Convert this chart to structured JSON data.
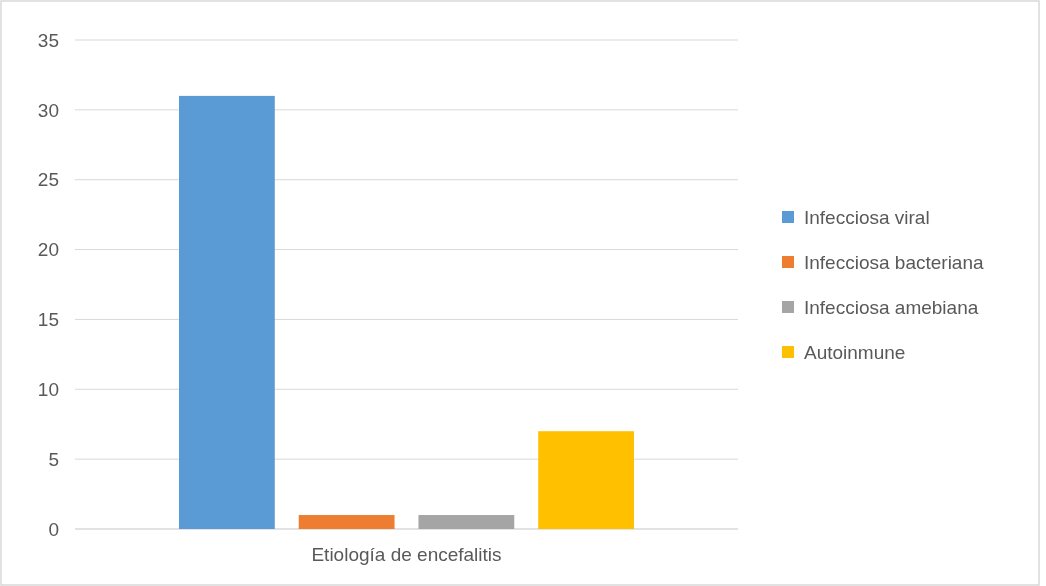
{
  "chart_data": {
    "type": "bar",
    "categories": [
      "Etiología de encefalitis"
    ],
    "series": [
      {
        "name": "Infecciosa viral",
        "color": "#5b9bd5",
        "values": [
          31
        ]
      },
      {
        "name": "Infecciosa bacteriana",
        "color": "#ed7d31",
        "values": [
          1
        ]
      },
      {
        "name": "Infecciosa amebiana",
        "color": "#a5a5a5",
        "values": [
          1
        ]
      },
      {
        "name": "Autoinmune",
        "color": "#ffc000",
        "values": [
          7
        ]
      }
    ],
    "ylim": [
      0,
      35
    ],
    "yticks": [
      0,
      5,
      10,
      15,
      20,
      25,
      30,
      35
    ],
    "grid": "y",
    "legend": "right"
  }
}
